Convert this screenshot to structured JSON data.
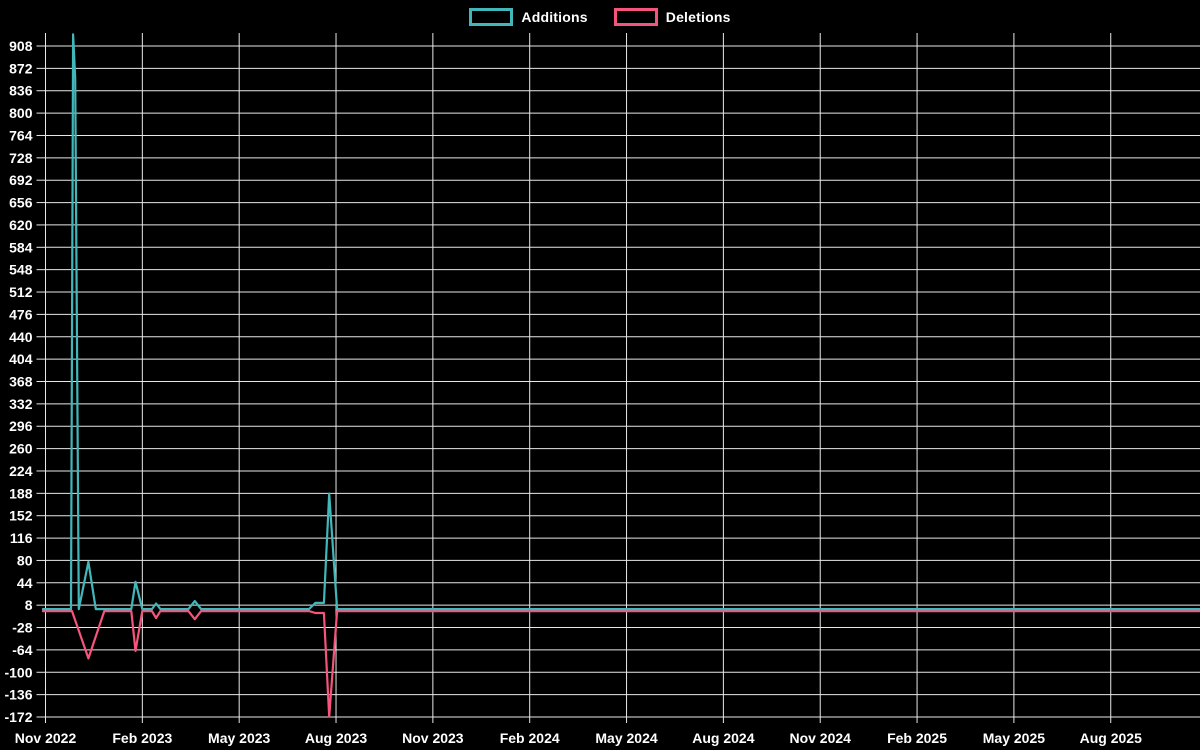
{
  "page": {
    "background_color": "#000000",
    "grid_color": "#e8e8e8",
    "text_color": "#ffffff"
  },
  "legend": {
    "items": [
      {
        "label": "Additions",
        "color": "#41b7ba"
      },
      {
        "label": "Deletions",
        "color": "#f5547c"
      }
    ]
  },
  "chart_data": {
    "type": "line",
    "title": "",
    "xlabel": "",
    "ylabel": "",
    "grid": true,
    "legend_position": "top-center",
    "background": "#000000",
    "y_axis": {
      "min": -172,
      "max": 908,
      "step": 36,
      "tick_labels": [
        "908",
        "872",
        "836",
        "800",
        "764",
        "728",
        "692",
        "656",
        "620",
        "584",
        "548",
        "512",
        "476",
        "440",
        "404",
        "368",
        "332",
        "296",
        "260",
        "224",
        "188",
        "152",
        "116",
        "80",
        "44",
        "8",
        "-28",
        "-64",
        "-100",
        "-136",
        "-172"
      ]
    },
    "x_axis": {
      "ticks": [
        {
          "label": "Nov 2022",
          "date": "2022-11-01"
        },
        {
          "label": "Feb 2023",
          "date": "2023-02-01"
        },
        {
          "label": "May 2023",
          "date": "2023-05-01"
        },
        {
          "label": "Aug 2023",
          "date": "2023-08-01"
        },
        {
          "label": "Nov 2023",
          "date": "2023-11-01"
        },
        {
          "label": "Feb 2024",
          "date": "2024-02-01"
        },
        {
          "label": "May 2024",
          "date": "2024-05-01"
        },
        {
          "label": "Aug 2024",
          "date": "2024-08-01"
        },
        {
          "label": "Nov 2024",
          "date": "2024-11-01"
        },
        {
          "label": "Feb 2025",
          "date": "2025-02-01"
        },
        {
          "label": "May 2025",
          "date": "2025-05-01"
        },
        {
          "label": "Aug 2025",
          "date": "2025-08-01"
        }
      ]
    },
    "series": [
      {
        "name": "Additions",
        "color": "#41b7ba",
        "points": [
          {
            "date": "2022-10-29",
            "value": 0
          },
          {
            "date": "2022-11-25",
            "value": 0
          },
          {
            "date": "2022-11-27",
            "value": 925
          },
          {
            "date": "2022-11-29",
            "value": 855
          },
          {
            "date": "2022-12-02",
            "value": 0
          },
          {
            "date": "2022-12-11",
            "value": 76
          },
          {
            "date": "2022-12-18",
            "value": 0
          },
          {
            "date": "2023-01-21",
            "value": 0
          },
          {
            "date": "2023-01-25",
            "value": 44
          },
          {
            "date": "2023-02-01",
            "value": 0
          },
          {
            "date": "2023-02-10",
            "value": 0
          },
          {
            "date": "2023-02-14",
            "value": 9
          },
          {
            "date": "2023-02-18",
            "value": 0
          },
          {
            "date": "2023-03-14",
            "value": 0
          },
          {
            "date": "2023-03-20",
            "value": 13
          },
          {
            "date": "2023-03-26",
            "value": 0
          },
          {
            "date": "2023-07-06",
            "value": 0
          },
          {
            "date": "2023-07-12",
            "value": 10
          },
          {
            "date": "2023-07-20",
            "value": 10
          },
          {
            "date": "2023-07-25",
            "value": 186
          },
          {
            "date": "2023-08-02",
            "value": 0
          },
          {
            "date": "2025-10-24",
            "value": 0
          }
        ]
      },
      {
        "name": "Deletions",
        "color": "#f5547c",
        "points": [
          {
            "date": "2022-10-29",
            "value": 0
          },
          {
            "date": "2022-11-26",
            "value": 0
          },
          {
            "date": "2022-12-11",
            "value": -76
          },
          {
            "date": "2022-12-26",
            "value": 0
          },
          {
            "date": "2023-01-21",
            "value": 0
          },
          {
            "date": "2023-01-25",
            "value": -64
          },
          {
            "date": "2023-02-01",
            "value": 0
          },
          {
            "date": "2023-02-10",
            "value": 0
          },
          {
            "date": "2023-02-14",
            "value": -11
          },
          {
            "date": "2023-02-18",
            "value": 0
          },
          {
            "date": "2023-03-14",
            "value": 0
          },
          {
            "date": "2023-03-20",
            "value": -13
          },
          {
            "date": "2023-03-26",
            "value": 0
          },
          {
            "date": "2023-07-06",
            "value": 0
          },
          {
            "date": "2023-07-12",
            "value": -3
          },
          {
            "date": "2023-07-20",
            "value": -3
          },
          {
            "date": "2023-07-25",
            "value": -170
          },
          {
            "date": "2023-08-02",
            "value": 0
          },
          {
            "date": "2025-10-24",
            "value": 0
          }
        ]
      }
    ]
  }
}
